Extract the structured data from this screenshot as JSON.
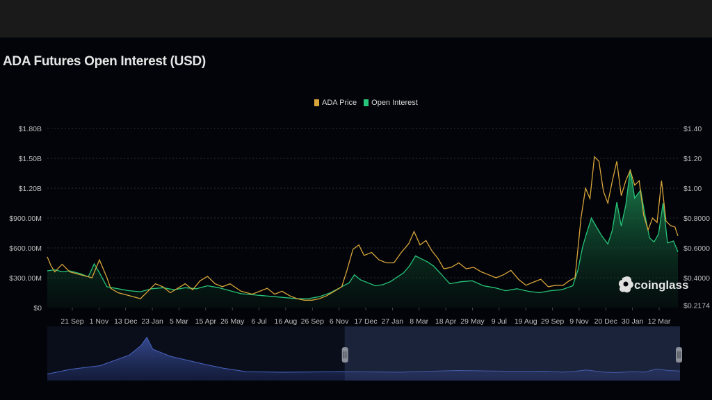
{
  "chart_data": {
    "type": "line",
    "title": "ADA Futures Open Interest (USD)",
    "legend_position": "top-center",
    "grid": true,
    "x_tick_labels": [
      "21 Sep",
      "1 Nov",
      "13 Dec",
      "23 Jan",
      "5 Mar",
      "15 Apr",
      "26 May",
      "6 Jul",
      "16 Aug",
      "26 Sep",
      "6 Nov",
      "17 Dec",
      "27 Jan",
      "8 Mar",
      "18 Apr",
      "29 May",
      "9 Jul",
      "19 Aug",
      "29 Sep",
      "9 Nov",
      "20 Dec",
      "30 Jan",
      "12 Mar"
    ],
    "y_left_tick_labels": [
      "$0",
      "$300.00M",
      "$600.00M",
      "$900.00M",
      "$1.20B",
      "$1.50B",
      "$1.80B"
    ],
    "y_left_ticks": [
      0,
      300,
      600,
      900,
      1200,
      1500,
      1800
    ],
    "y_left_unit": "USD millions",
    "ylim_left": [
      0,
      1800
    ],
    "y_right_tick_labels": [
      "$0.2174",
      "$0.4000",
      "$0.6000",
      "$0.8000",
      "$1.00",
      "$1.20",
      "$1.40"
    ],
    "y_right_ticks": [
      0.2174,
      0.4,
      0.6,
      0.8,
      1.0,
      1.2,
      1.4
    ],
    "ylim_right": [
      0.2,
      1.4
    ],
    "series": [
      {
        "name": "ADA Price",
        "axis": "right",
        "color": "#d9a53a",
        "points": [
          [
            0,
            0.54
          ],
          [
            5,
            0.48
          ],
          [
            10,
            0.44
          ],
          [
            20,
            0.49
          ],
          [
            30,
            0.44
          ],
          [
            45,
            0.42
          ],
          [
            60,
            0.4
          ],
          [
            70,
            0.52
          ],
          [
            80,
            0.4
          ],
          [
            85,
            0.33
          ],
          [
            95,
            0.3
          ],
          [
            110,
            0.28
          ],
          [
            125,
            0.26
          ],
          [
            135,
            0.31
          ],
          [
            145,
            0.36
          ],
          [
            155,
            0.34
          ],
          [
            165,
            0.3
          ],
          [
            175,
            0.33
          ],
          [
            185,
            0.36
          ],
          [
            195,
            0.32
          ],
          [
            205,
            0.38
          ],
          [
            215,
            0.41
          ],
          [
            225,
            0.36
          ],
          [
            235,
            0.34
          ],
          [
            245,
            0.36
          ],
          [
            260,
            0.31
          ],
          [
            275,
            0.29
          ],
          [
            285,
            0.31
          ],
          [
            295,
            0.33
          ],
          [
            305,
            0.29
          ],
          [
            315,
            0.31
          ],
          [
            325,
            0.28
          ],
          [
            335,
            0.26
          ],
          [
            345,
            0.25
          ],
          [
            355,
            0.25
          ],
          [
            365,
            0.26
          ],
          [
            375,
            0.28
          ],
          [
            385,
            0.31
          ],
          [
            395,
            0.34
          ],
          [
            402,
            0.45
          ],
          [
            410,
            0.59
          ],
          [
            418,
            0.62
          ],
          [
            425,
            0.55
          ],
          [
            435,
            0.57
          ],
          [
            445,
            0.52
          ],
          [
            455,
            0.5
          ],
          [
            465,
            0.5
          ],
          [
            475,
            0.57
          ],
          [
            485,
            0.63
          ],
          [
            492,
            0.71
          ],
          [
            500,
            0.62
          ],
          [
            508,
            0.65
          ],
          [
            516,
            0.58
          ],
          [
            524,
            0.53
          ],
          [
            532,
            0.46
          ],
          [
            542,
            0.47
          ],
          [
            552,
            0.5
          ],
          [
            562,
            0.46
          ],
          [
            572,
            0.47
          ],
          [
            582,
            0.44
          ],
          [
            592,
            0.42
          ],
          [
            602,
            0.4
          ],
          [
            612,
            0.42
          ],
          [
            622,
            0.45
          ],
          [
            632,
            0.39
          ],
          [
            642,
            0.35
          ],
          [
            652,
            0.37
          ],
          [
            662,
            0.39
          ],
          [
            672,
            0.34
          ],
          [
            682,
            0.35
          ],
          [
            692,
            0.35
          ],
          [
            700,
            0.38
          ],
          [
            708,
            0.4
          ],
          [
            716,
            0.8
          ],
          [
            722,
            1.0
          ],
          [
            728,
            0.93
          ],
          [
            734,
            1.21
          ],
          [
            740,
            1.18
          ],
          [
            746,
            0.98
          ],
          [
            752,
            0.9
          ],
          [
            758,
            1.05
          ],
          [
            764,
            1.18
          ],
          [
            770,
            0.95
          ],
          [
            776,
            1.05
          ],
          [
            782,
            1.12
          ],
          [
            788,
            1.02
          ],
          [
            794,
            1.05
          ],
          [
            800,
            0.82
          ],
          [
            806,
            0.72
          ],
          [
            812,
            0.8
          ],
          [
            818,
            0.77
          ],
          [
            824,
            1.05
          ],
          [
            830,
            0.78
          ],
          [
            836,
            0.75
          ],
          [
            842,
            0.74
          ],
          [
            846,
            0.68
          ]
        ]
      },
      {
        "name": "Open Interest",
        "axis": "left",
        "color": "#27c57a",
        "points": [
          [
            0,
            370
          ],
          [
            10,
            380
          ],
          [
            20,
            360
          ],
          [
            30,
            370
          ],
          [
            45,
            340
          ],
          [
            55,
            310
          ],
          [
            63,
            440
          ],
          [
            70,
            350
          ],
          [
            80,
            210
          ],
          [
            95,
            190
          ],
          [
            110,
            170
          ],
          [
            125,
            160
          ],
          [
            140,
            190
          ],
          [
            155,
            200
          ],
          [
            170,
            180
          ],
          [
            185,
            200
          ],
          [
            200,
            190
          ],
          [
            215,
            220
          ],
          [
            230,
            200
          ],
          [
            245,
            170
          ],
          [
            260,
            140
          ],
          [
            275,
            130
          ],
          [
            290,
            120
          ],
          [
            305,
            110
          ],
          [
            320,
            100
          ],
          [
            335,
            90
          ],
          [
            350,
            90
          ],
          [
            365,
            110
          ],
          [
            380,
            150
          ],
          [
            395,
            210
          ],
          [
            405,
            250
          ],
          [
            412,
            330
          ],
          [
            420,
            280
          ],
          [
            430,
            250
          ],
          [
            440,
            220
          ],
          [
            450,
            230
          ],
          [
            460,
            260
          ],
          [
            470,
            310
          ],
          [
            478,
            350
          ],
          [
            486,
            420
          ],
          [
            494,
            520
          ],
          [
            502,
            490
          ],
          [
            510,
            460
          ],
          [
            518,
            420
          ],
          [
            528,
            340
          ],
          [
            540,
            240
          ],
          [
            555,
            260
          ],
          [
            570,
            270
          ],
          [
            585,
            220
          ],
          [
            600,
            200
          ],
          [
            615,
            170
          ],
          [
            630,
            190
          ],
          [
            645,
            165
          ],
          [
            660,
            150
          ],
          [
            675,
            170
          ],
          [
            690,
            180
          ],
          [
            705,
            220
          ],
          [
            712,
            380
          ],
          [
            718,
            610
          ],
          [
            724,
            760
          ],
          [
            730,
            900
          ],
          [
            736,
            820
          ],
          [
            744,
            720
          ],
          [
            752,
            640
          ],
          [
            758,
            780
          ],
          [
            764,
            1060
          ],
          [
            770,
            820
          ],
          [
            776,
            1030
          ],
          [
            782,
            1390
          ],
          [
            788,
            1100
          ],
          [
            796,
            1180
          ],
          [
            802,
            920
          ],
          [
            808,
            700
          ],
          [
            814,
            660
          ],
          [
            820,
            740
          ],
          [
            826,
            1050
          ],
          [
            832,
            650
          ],
          [
            840,
            670
          ],
          [
            846,
            560
          ]
        ]
      }
    ],
    "navigator": {
      "series_name": "Open Interest",
      "points": [
        [
          0,
          20
        ],
        [
          40,
          60
        ],
        [
          90,
          90
        ],
        [
          140,
          180
        ],
        [
          160,
          260
        ],
        [
          170,
          330
        ],
        [
          180,
          230
        ],
        [
          210,
          170
        ],
        [
          270,
          100
        ],
        [
          300,
          70
        ],
        [
          340,
          40
        ],
        [
          400,
          35
        ],
        [
          500,
          40
        ],
        [
          600,
          35
        ],
        [
          700,
          50
        ],
        [
          800,
          42
        ],
        [
          850,
          44
        ],
        [
          880,
          36
        ],
        [
          900,
          42
        ],
        [
          920,
          54
        ],
        [
          950,
          36
        ],
        [
          970,
          33
        ],
        [
          1000,
          40
        ],
        [
          1020,
          36
        ],
        [
          1040,
          62
        ],
        [
          1060,
          50
        ],
        [
          1080,
          46
        ]
      ],
      "range_start_fraction": 0.47,
      "range_end_fraction": 1.0
    },
    "watermark": "coinglass"
  }
}
